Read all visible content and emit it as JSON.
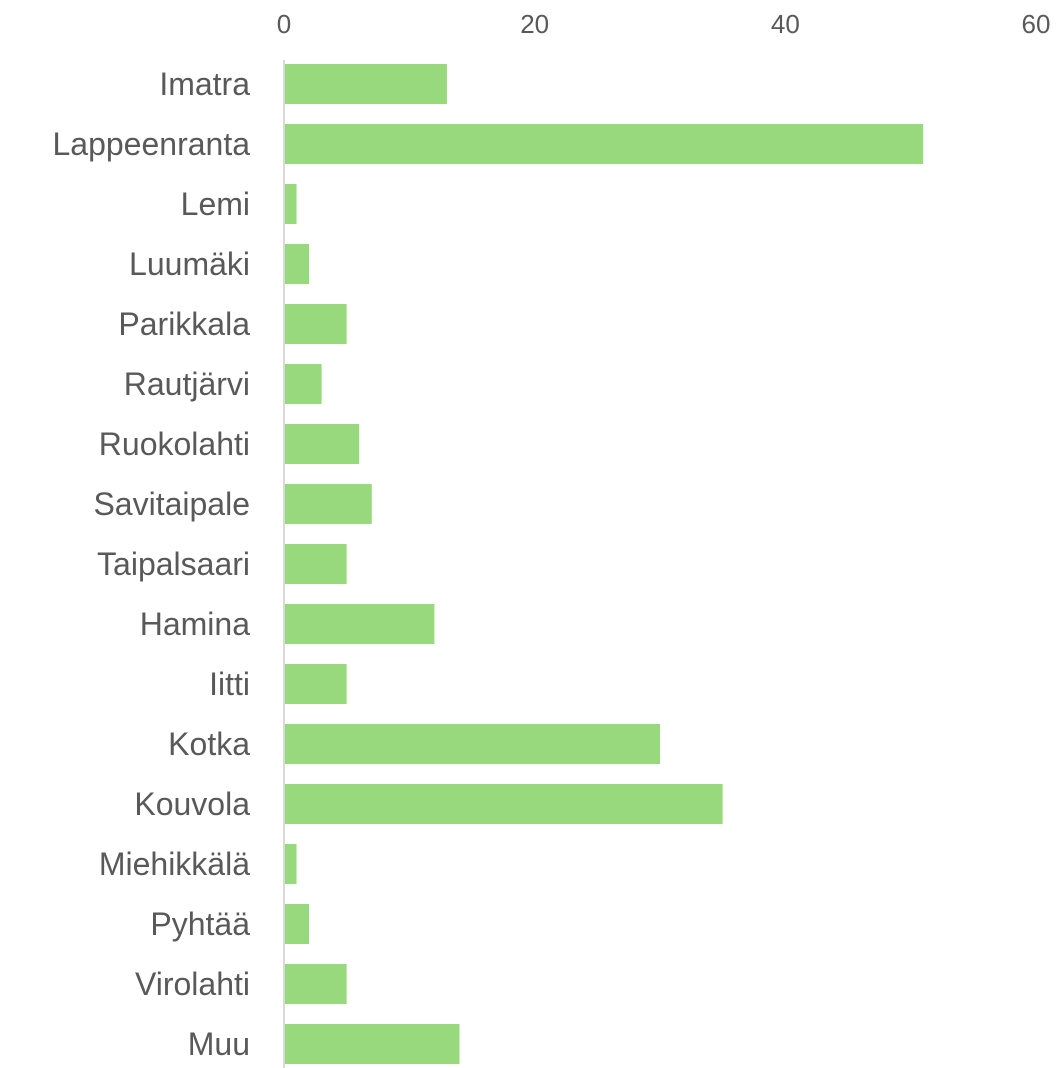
{
  "chart_data": {
    "type": "bar",
    "orientation": "horizontal",
    "categories": [
      "Imatra",
      "Lappeenranta",
      "Lemi",
      "Luumäki",
      "Parikkala",
      "Rautjärvi",
      "Ruokolahti",
      "Savitaipale",
      "Taipalsaari",
      "Hamina",
      "Iitti",
      "Kotka",
      "Kouvola",
      "Miehikkälä",
      "Pyhtää",
      "Virolahti",
      "Muu"
    ],
    "values": [
      13,
      51,
      1,
      2,
      5,
      3,
      6,
      7,
      5,
      12,
      5,
      30,
      35,
      1,
      2,
      5,
      14
    ],
    "x_ticks": [
      "0",
      "20",
      "40",
      "60"
    ],
    "xlim": [
      0,
      60
    ],
    "x_axis_position": "top",
    "grid": false,
    "legend": "none",
    "bar_color": "#98d97e",
    "axis_color": "#d9d9d9",
    "text_color": "#595959"
  }
}
